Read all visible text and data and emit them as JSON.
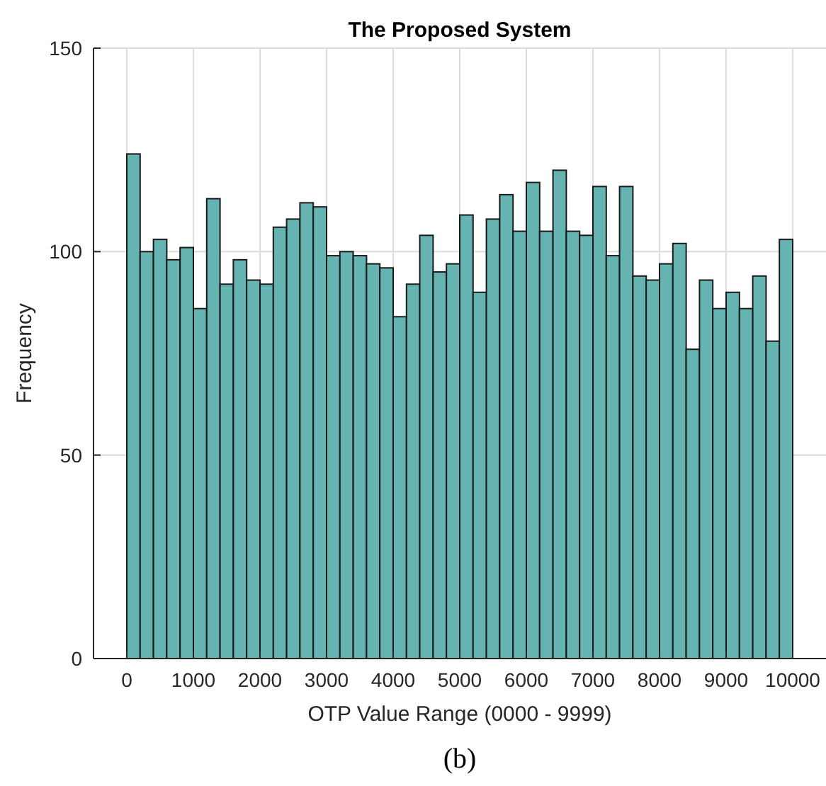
{
  "chart_data": {
    "type": "histogram",
    "title": "The Proposed System",
    "xlabel": "OTP Value Range (0000 - 9999)",
    "ylabel": "Frequency",
    "annotations": [
      "(b)"
    ],
    "bins": [
      0,
      200,
      400,
      600,
      800,
      1000,
      1200,
      1400,
      1600,
      1800,
      2000,
      2200,
      2400,
      2600,
      2800,
      3000,
      3200,
      3400,
      3600,
      3800,
      4000,
      4200,
      4400,
      4600,
      4800,
      5000,
      5200,
      5400,
      5600,
      5800,
      6000,
      6200,
      6400,
      6600,
      6800,
      7000,
      7200,
      7400,
      7600,
      7800,
      8000,
      8200,
      8400,
      8600,
      8800,
      9000,
      9200,
      9400,
      9600,
      9800,
      10000
    ],
    "values": [
      124,
      100,
      103,
      98,
      101,
      86,
      113,
      92,
      98,
      93,
      92,
      106,
      108,
      112,
      111,
      99,
      100,
      99,
      97,
      96,
      84,
      92,
      104,
      95,
      97,
      109,
      90,
      108,
      114,
      105,
      117,
      105,
      120,
      105,
      104,
      116,
      99,
      116,
      94,
      93,
      97,
      102,
      76,
      93,
      86,
      90,
      86,
      94,
      78,
      103
    ],
    "color": "#63b3b0",
    "xlim": [
      -500,
      10500
    ],
    "xticks": [
      0,
      1000,
      2000,
      3000,
      4000,
      5000,
      6000,
      7000,
      8000,
      9000,
      10000
    ],
    "ylim": [
      0,
      150
    ],
    "yticks": [
      0,
      50,
      100,
      150
    ],
    "grid": true
  }
}
